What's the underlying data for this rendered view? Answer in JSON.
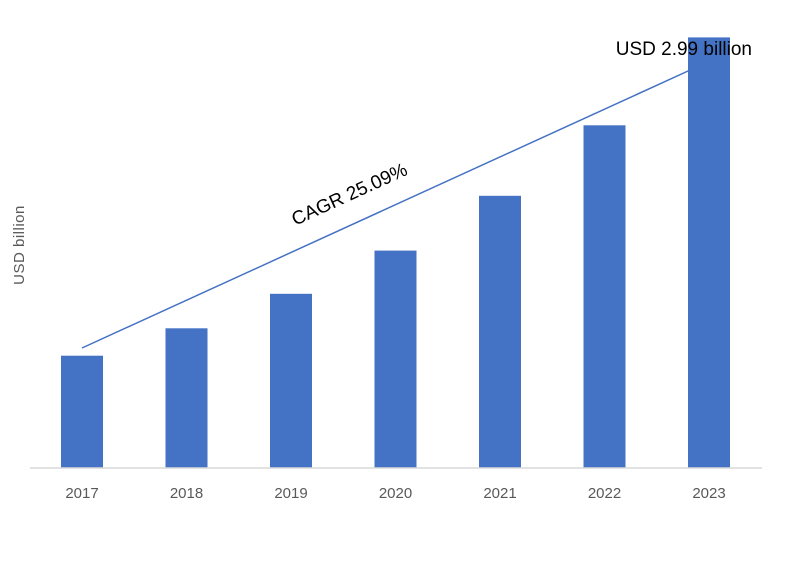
{
  "chart_data": {
    "type": "bar",
    "title": "",
    "xlabel": "",
    "ylabel": "USD billion",
    "categories": [
      "2017",
      "2018",
      "2019",
      "2020",
      "2021",
      "2022",
      "2023"
    ],
    "values": [
      0.78,
      0.97,
      1.21,
      1.51,
      1.89,
      2.38,
      2.99
    ],
    "ylim": [
      0,
      3.25
    ],
    "grid": false,
    "legend": "none",
    "bar_color": "#4472C4",
    "trend_arrow_color": "#4472C4",
    "annotations": {
      "cagr": "CAGR 25.09%",
      "end_value": "USD 2.99 billion"
    }
  }
}
